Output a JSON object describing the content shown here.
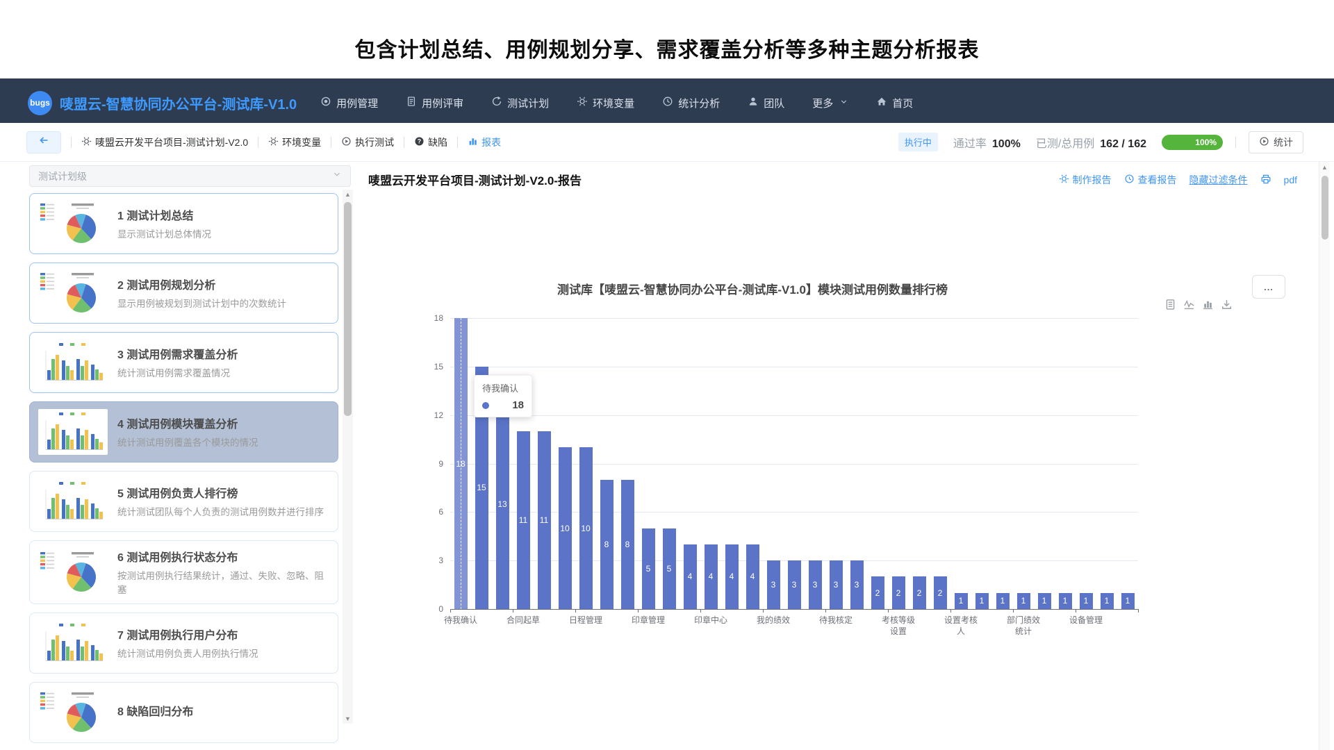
{
  "hero_title": "包含计划总结、用例规划分享、需求覆盖分析等多种主题分析报表",
  "navbar": {
    "logo": "bugs",
    "title": "唛盟云-智慧协同办公平台-测试库-V1.0",
    "items": [
      {
        "label": "用例管理",
        "icon": "dial"
      },
      {
        "label": "用例评审",
        "icon": "doc"
      },
      {
        "label": "测试计划",
        "icon": "cycle"
      },
      {
        "label": "环境变量",
        "icon": "gear"
      },
      {
        "label": "统计分析",
        "icon": "clock"
      },
      {
        "label": "团队",
        "icon": "person"
      },
      {
        "label": "更多",
        "icon": "none",
        "chevron": true
      },
      {
        "label": "首页",
        "icon": "home"
      }
    ]
  },
  "toolbar": {
    "items": [
      {
        "label": "唛盟云开发平台项目-测试计划-V2.0",
        "icon": "gear",
        "active": false
      },
      {
        "label": "环境变量",
        "icon": "gear",
        "active": false
      },
      {
        "label": "执行测试",
        "icon": "play",
        "active": false
      },
      {
        "label": "缺陷",
        "icon": "question",
        "active": false
      },
      {
        "label": "报表",
        "icon": "bars3",
        "active": true
      }
    ],
    "status_badge": "执行中",
    "pass_rate_label": "通过率",
    "pass_rate_value": "100%",
    "tested_label": "已测/总用例",
    "tested_value": "162 / 162",
    "progress_text": "100%",
    "stats_button": "统计"
  },
  "sidebar": {
    "filter_placeholder": "测试计划级",
    "cards": [
      {
        "title": "1 测试计划总结",
        "subtitle": "显示测试计划总体情况",
        "thumb": "pie",
        "selected": false,
        "lite": false
      },
      {
        "title": "2 测试用例规划分析",
        "subtitle": "显示用例被规划到测试计划中的次数统计",
        "thumb": "pie",
        "selected": false,
        "lite": false
      },
      {
        "title": "3 测试用例需求覆盖分析",
        "subtitle": "统计测试用例需求覆盖情况",
        "thumb": "bar",
        "selected": false,
        "lite": false
      },
      {
        "title": "4 测试用例模块覆盖分析",
        "subtitle": "统计测试用例覆盖各个模块的情况",
        "thumb": "bar",
        "selected": true,
        "lite": false
      },
      {
        "title": "5 测试用例负责人排行榜",
        "subtitle": "统计测试团队每个人负责的测试用例数并进行排序",
        "thumb": "bar",
        "selected": false,
        "lite": true
      },
      {
        "title": "6 测试用例执行状态分布",
        "subtitle": "按测试用例执行结果统计，通过、失败、忽略、阻塞",
        "thumb": "pie",
        "selected": false,
        "lite": true
      },
      {
        "title": "7 测试用例执行用户分布",
        "subtitle": "统计测试用例负责人用例执行情况",
        "thumb": "bar",
        "selected": false,
        "lite": true
      },
      {
        "title": "8 缺陷回归分布",
        "subtitle": "",
        "thumb": "pie",
        "selected": false,
        "lite": true
      }
    ]
  },
  "report": {
    "title": "唛盟云开发平台项目-测试计划-V2.0-报告",
    "make_label": "制作报告",
    "view_label": "查看报告",
    "hide_filter_label": "隐藏过滤条件",
    "pdf_label": "pdf"
  },
  "chart_ui": {
    "more_label": "...",
    "toolbox": [
      "data-view-icon",
      "line-chart-icon",
      "bar-chart-icon",
      "download-icon"
    ]
  },
  "chart_data": {
    "type": "bar",
    "title": "测试库【唛盟云-智慧协同办公平台-测试库-V1.0】模块测试用例数量排行榜",
    "values": [
      18,
      15,
      13,
      11,
      11,
      10,
      10,
      8,
      8,
      5,
      5,
      4,
      4,
      4,
      4,
      3,
      3,
      3,
      3,
      3,
      2,
      2,
      2,
      2,
      1,
      1,
      1,
      1,
      1,
      1,
      1,
      1,
      1
    ],
    "labeled_categories": [
      {
        "index": 0,
        "label": "待我确认"
      },
      {
        "index": 3,
        "label": "合同起草"
      },
      {
        "index": 6,
        "label": "日程管理"
      },
      {
        "index": 9,
        "label": "印章管理"
      },
      {
        "index": 12,
        "label": "印章中心"
      },
      {
        "index": 15,
        "label": "我的绩效"
      },
      {
        "index": 18,
        "label": "待我核定"
      },
      {
        "index": 21,
        "label": "考核等级设置"
      },
      {
        "index": 24,
        "label": "设置考核人"
      },
      {
        "index": 27,
        "label": "部门绩效统计"
      },
      {
        "index": 30,
        "label": "设备管理"
      }
    ],
    "y_ticks": [
      0,
      3,
      6,
      9,
      12,
      15,
      18
    ],
    "ylim": [
      0,
      18
    ],
    "label_interval": 3,
    "grid_on": true,
    "bar_color": "#5b74c8",
    "highlight_index": 0,
    "highlight_color": "#8294d6",
    "tooltip": {
      "label": "待我确认",
      "value": "18"
    }
  }
}
